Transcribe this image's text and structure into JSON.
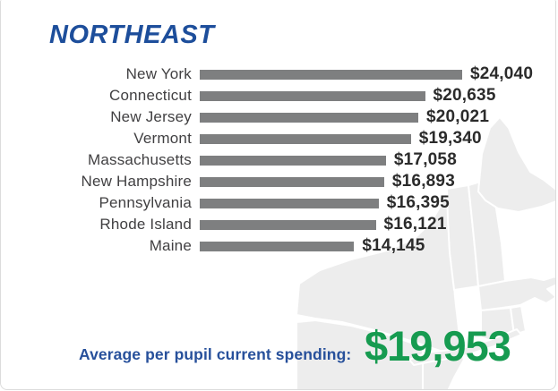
{
  "header": {
    "title": "NORTHEAST",
    "title_color": "#1d4e9b"
  },
  "chart_data": {
    "type": "bar",
    "orientation": "horizontal",
    "title": "NORTHEAST",
    "categories": [
      "New York",
      "Connecticut",
      "New Jersey",
      "Vermont",
      "Massachusetts",
      "New Hampshire",
      "Pennsylvania",
      "Rhode Island",
      "Maine"
    ],
    "values": [
      24040,
      20635,
      20021,
      19340,
      17058,
      16893,
      16395,
      16121,
      14145
    ],
    "value_labels": [
      "$24,040",
      "$20,635",
      "$20,021",
      "$19,340",
      "$17,058",
      "$16,893",
      "$16,395",
      "$16,121",
      "$14,145"
    ],
    "xlabel": "",
    "ylabel": "",
    "xlim": [
      0,
      24040
    ],
    "grid": false,
    "legend": false,
    "bar_color": "#7e7f80",
    "label_color": "#414042",
    "value_color": "#2b2b2b",
    "value_label_position": "end-of-bar"
  },
  "footer": {
    "label": "Average per pupil current spending:",
    "value": "$19,953",
    "label_color": "#27509b",
    "value_color": "#169b50"
  },
  "map": {
    "name": "northeast-states-map",
    "fill": "#ededed",
    "stroke": "#ffffff"
  }
}
